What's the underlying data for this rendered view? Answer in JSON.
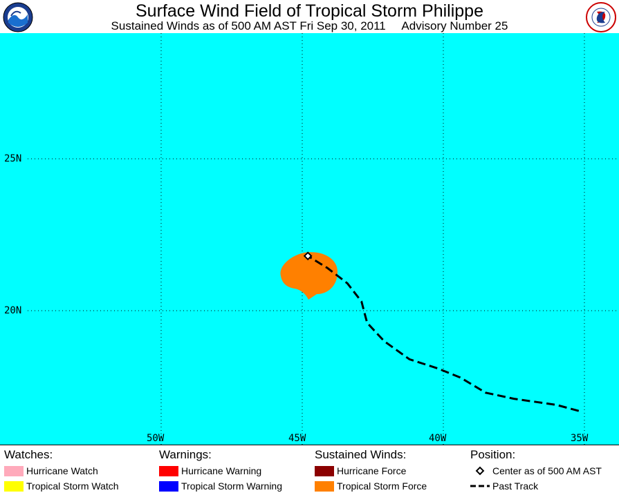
{
  "header": {
    "title": "Surface Wind Field of Tropical Storm Philippe",
    "subtitle": "Sustained Winds as of 500 AM AST Fri Sep 30, 2011     Advisory Number 25"
  },
  "map": {
    "latitude_labels": [
      "25N",
      "20N"
    ],
    "longitude_labels": [
      "50W",
      "45W",
      "40W",
      "35W"
    ],
    "colors": {
      "ocean": "#00ffff",
      "tropical_storm_force": "#ff8000",
      "grid": "#000000"
    },
    "storm_center": {
      "lon": -44.8,
      "lat": 21.8
    },
    "past_track": [
      {
        "lon": -35.2,
        "lat": 16.7
      },
      {
        "lon": -36.0,
        "lat": 16.9
      },
      {
        "lon": -37.5,
        "lat": 17.1
      },
      {
        "lon": -38.5,
        "lat": 17.3
      },
      {
        "lon": -39.4,
        "lat": 17.8
      },
      {
        "lon": -40.2,
        "lat": 18.1
      },
      {
        "lon": -41.2,
        "lat": 18.4
      },
      {
        "lon": -42.1,
        "lat": 19.0
      },
      {
        "lon": -42.7,
        "lat": 19.6
      },
      {
        "lon": -42.9,
        "lat": 20.3
      },
      {
        "lon": -43.4,
        "lat": 20.9
      },
      {
        "lon": -44.1,
        "lat": 21.4
      },
      {
        "lon": -44.8,
        "lat": 21.8
      }
    ]
  },
  "legend": {
    "watches": {
      "heading": "Watches:",
      "items": [
        {
          "label": "Hurricane Watch",
          "color": "#ffaabb"
        },
        {
          "label": "Tropical Storm Watch",
          "color": "#ffff00"
        }
      ]
    },
    "warnings": {
      "heading": "Warnings:",
      "items": [
        {
          "label": "Hurricane Warning",
          "color": "#ff0000"
        },
        {
          "label": "Tropical Storm Warning",
          "color": "#0000ff"
        }
      ]
    },
    "winds": {
      "heading": "Sustained Winds:",
      "items": [
        {
          "label": "Hurricane Force",
          "color": "#8b0000"
        },
        {
          "label": "Tropical Storm Force",
          "color": "#ff8000"
        }
      ]
    },
    "position": {
      "heading": "Position:",
      "center_label": "Center as of 500 AM AST",
      "track_label": "Past Track"
    }
  }
}
